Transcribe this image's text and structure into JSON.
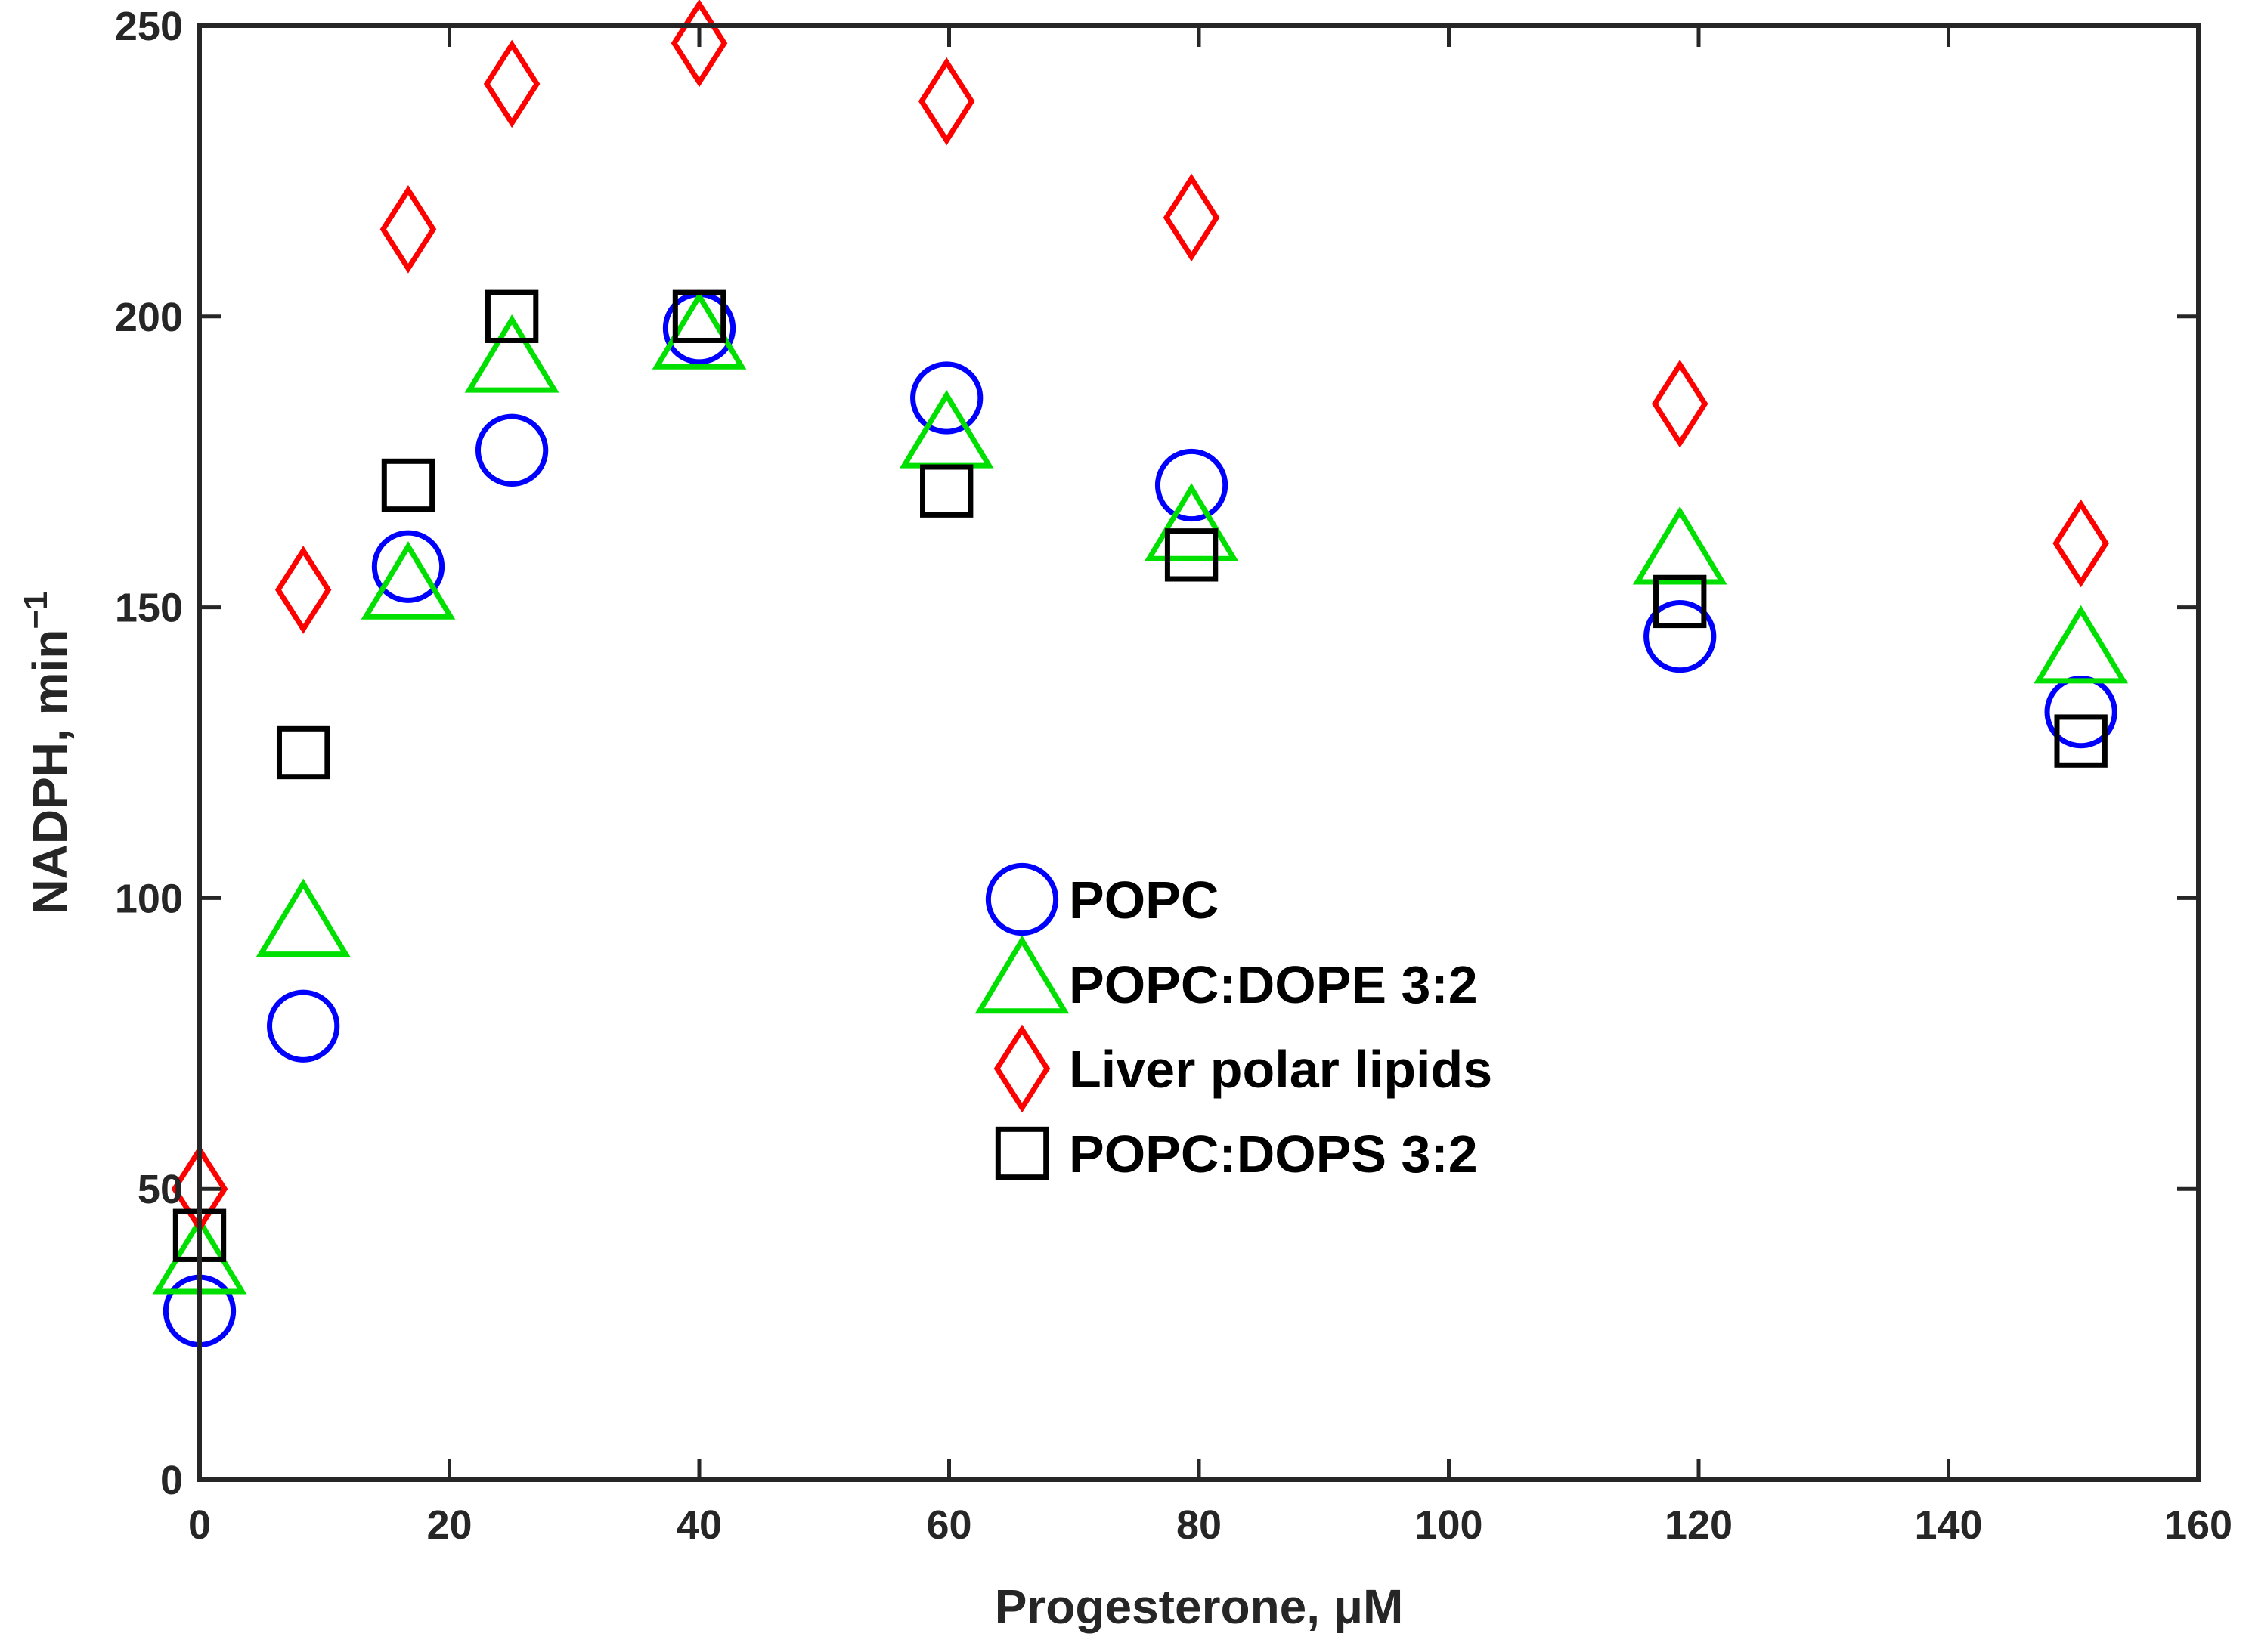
{
  "chart_data": {
    "type": "scatter",
    "title": "",
    "xlabel": "Progesterone, μM",
    "ylabel_main": "NADPH, min",
    "ylabel_sup": "−1",
    "xlim": [
      0,
      160
    ],
    "ylim": [
      0,
      250
    ],
    "grid": false,
    "legend_position": "center",
    "x_ticks": [
      0,
      20,
      40,
      60,
      80,
      100,
      120,
      140,
      160
    ],
    "y_ticks": [
      0,
      50,
      100,
      150,
      200,
      250
    ],
    "series": [
      {
        "name": "POPC",
        "marker": "circle",
        "color": "#0000ff",
        "x": [
          0,
          8.3,
          16.7,
          25,
          40,
          59.8,
          79.4,
          118.5,
          150.6
        ],
        "y": [
          29,
          78,
          157,
          177,
          198,
          186,
          171,
          145,
          132
        ]
      },
      {
        "name": "POPC:DOPE 3:2",
        "marker": "triangle",
        "color": "#00e000",
        "x": [
          0,
          8.3,
          16.7,
          25,
          40,
          59.8,
          79.4,
          118.5,
          150.6
        ],
        "y": [
          37,
          95,
          153,
          192,
          196,
          179,
          163,
          159,
          142
        ]
      },
      {
        "name": "Liver polar lipids",
        "marker": "diamond",
        "color": "#ff0000",
        "x": [
          0,
          8.3,
          16.7,
          25,
          40,
          59.8,
          79.4,
          118.5,
          150.6
        ],
        "y": [
          50,
          153,
          215,
          240,
          247,
          237,
          217,
          185,
          161
        ]
      },
      {
        "name": "POPC:DOPS  3:2",
        "marker": "square",
        "color": "#000000",
        "x": [
          0,
          8.3,
          16.7,
          25,
          40,
          59.8,
          79.4,
          118.5,
          150.6
        ],
        "y": [
          42,
          125,
          171,
          200,
          200,
          170,
          159,
          151,
          127
        ]
      }
    ]
  }
}
